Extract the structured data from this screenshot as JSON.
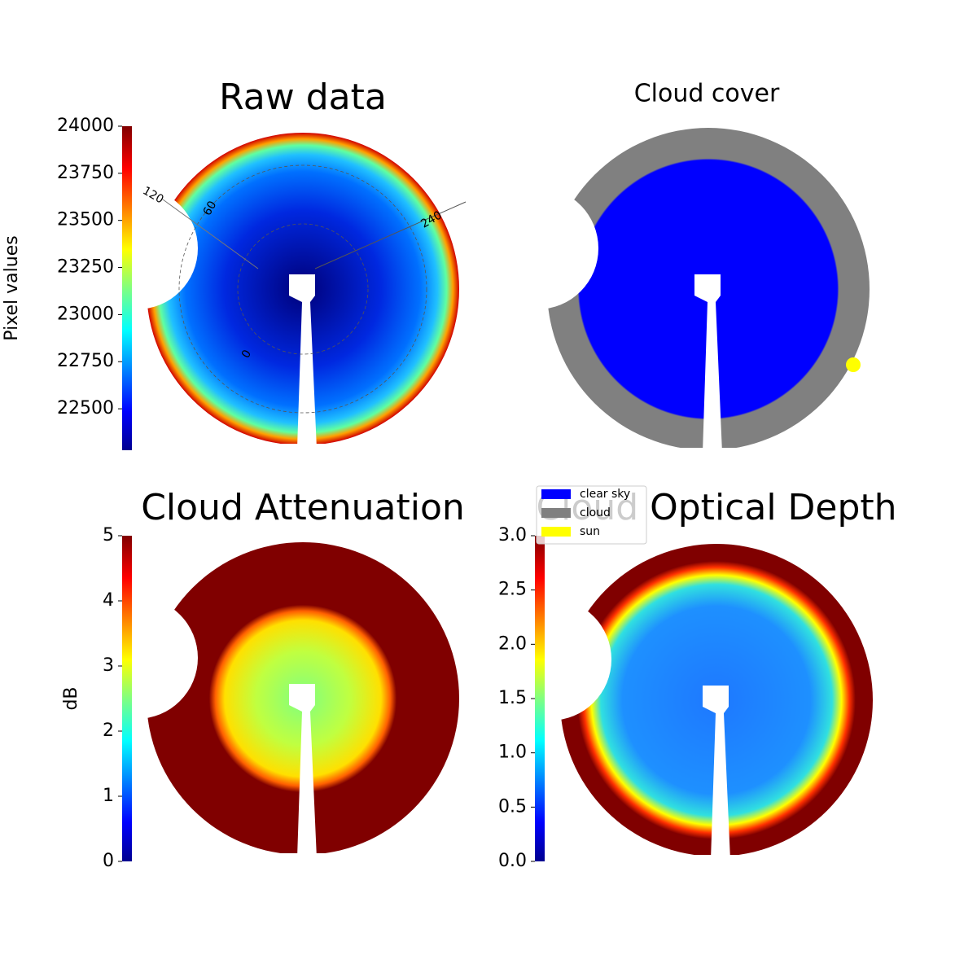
{
  "chart_data": [
    {
      "type": "image",
      "title": "Raw data",
      "colorbar": {
        "label": "Pixel values",
        "colormap": "jet",
        "ylim": [
          22280,
          24000
        ],
        "yticks": [
          22500,
          22750,
          23000,
          23250,
          23500,
          23750,
          24000
        ]
      },
      "annotations": [
        "120",
        "60",
        "240",
        "0"
      ]
    },
    {
      "type": "image",
      "title": "Cloud cover",
      "legend": [
        {
          "name": "clear sky",
          "color": "#0000ff"
        },
        {
          "name": "cloud",
          "color": "#808080"
        },
        {
          "name": "sun",
          "color": "#ffff00"
        }
      ]
    },
    {
      "type": "image",
      "title": "Cloud Attenuation",
      "colorbar": {
        "label": "dB",
        "colormap": "jet",
        "ylim": [
          0,
          5
        ],
        "yticks": [
          0,
          1,
          2,
          3,
          4,
          5
        ]
      }
    },
    {
      "type": "image",
      "title": "Cloud Optical Depth",
      "colorbar": {
        "colormap": "jet",
        "ylim": [
          0,
          3
        ],
        "yticks": [
          {
            "value": 0,
            "label": "0.0"
          },
          0.5,
          {
            "value": 1,
            "label": "1.0"
          },
          1.5,
          {
            "value": 2,
            "label": "2.0"
          },
          2.5,
          {
            "value": 3,
            "label": "3.0"
          }
        ]
      }
    }
  ]
}
